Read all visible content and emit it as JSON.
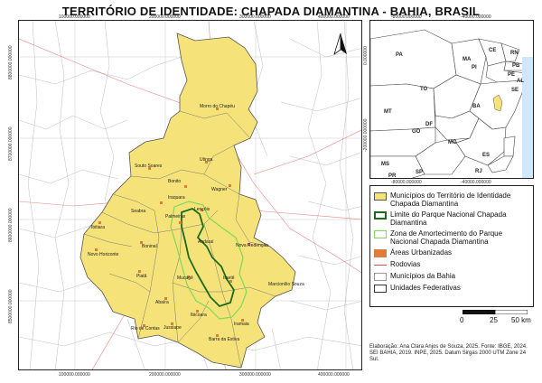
{
  "title": "TERRITÓRIO DE IDENTIDADE: CHAPADA DIAMANTINA - BAHIA, BRASIL",
  "coords": {
    "top_x": [
      "100000.000000",
      "200000.000000",
      "300000.000000",
      "400000.000000"
    ],
    "bottom_x": [
      "100000.000000",
      "200000.000000",
      "300000.000000",
      "400000.000000"
    ],
    "left_y": [
      "8800000.000000",
      "8700000.000000",
      "8600000.000000",
      "8500000.000000"
    ],
    "inset_x_top": [
      "-80000.000000",
      "-40000.000000"
    ],
    "inset_x_bottom": [
      "-80000.000000",
      "-40000.000000"
    ],
    "inset_y": [
      "0.000000",
      "-200000.000000"
    ]
  },
  "municipalities": [
    "Morro do Chapéu",
    "Souto Soares",
    "Bonito",
    "Utinga",
    "Wagner",
    "Iraquara",
    "Seabra",
    "Lençóis",
    "Palmeiras",
    "Ibitiara",
    "Novo Horizonte",
    "Boninal",
    "Andaraí",
    "Nova Redenção",
    "Piatã",
    "Mucugê",
    "Itaetê",
    "Marcionílio Souza",
    "Abaíra",
    "Rio de Contas",
    "Ibicoara",
    "Jussiape",
    "Iramaia",
    "Barra da Estiva"
  ],
  "states": [
    "PA",
    "MA",
    "CE",
    "RN",
    "PB",
    "PE",
    "PI",
    "AL",
    "SE",
    "TO",
    "BA",
    "MT",
    "DF",
    "GO",
    "MG",
    "ES",
    "MS",
    "SP",
    "RJ",
    "PR"
  ],
  "legend": [
    {
      "label": "Municípios do Território de Identidade Chapada Diamantina",
      "color": "#f5e37a",
      "border": "#555"
    },
    {
      "label": "Limite do Parque Nacional Chapada Diamantina",
      "color": "#ffffff",
      "border": "#1b6b1b"
    },
    {
      "label": "Zona de Amortecimento do Parque Nacional Chapada Diamantina",
      "color": "#ffffff",
      "border": "#7ed957"
    },
    {
      "label": "Áreas Urbanizadas",
      "color": "#e07b3a",
      "border": "#e07b3a"
    },
    {
      "label": "Rodovias",
      "color": "#ffffff",
      "border": "#999"
    },
    {
      "label": "Municípios da Bahia",
      "color": "#ffffff",
      "border": "#777"
    },
    {
      "label": "Unidades Federativas",
      "color": "#ffffff",
      "border": "#333"
    }
  ],
  "scale": {
    "labels": [
      "0",
      "25",
      "50 km"
    ]
  },
  "credits": "Elaboração: Ana Clara Anjos de Souza, 2025. Fonte: IBGE, 2024. SEI BAHIA, 2019. INPE, 2025. Datum Sirgas 2000 UTM Zone 24 Sul."
}
